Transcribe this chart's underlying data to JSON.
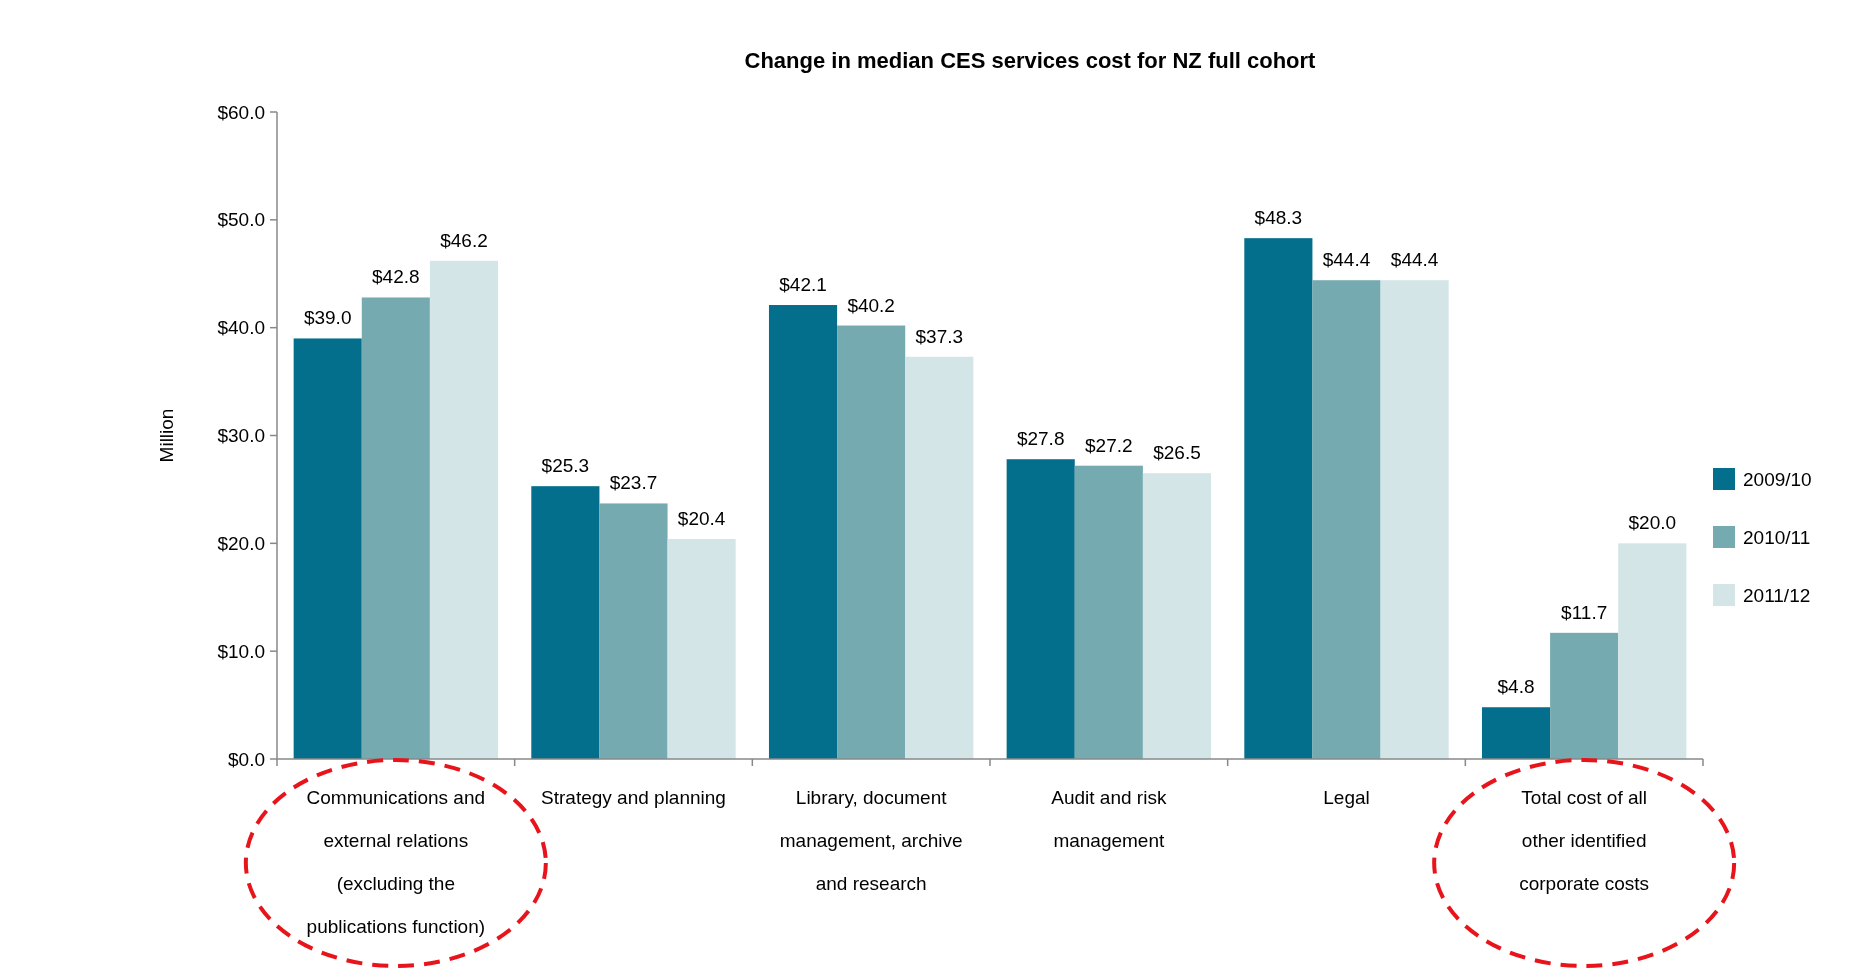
{
  "chart_data": {
    "type": "bar",
    "title": "Change in median CES services cost for NZ full cohort",
    "ylabel": "Million",
    "categories": [
      "Communications and external relations (excluding the publications function)",
      "Strategy and planning",
      "Library, document management, archive and research",
      "Audit and risk management",
      "Legal",
      "Total cost of all other identified corporate costs"
    ],
    "series": [
      {
        "name": "2009/10",
        "color": "#046f8c",
        "values": [
          39.0,
          25.3,
          42.1,
          27.8,
          48.3,
          4.8
        ],
        "value_labels": [
          "$39.0",
          "$25.3",
          "$42.1",
          "$27.8",
          "$48.3",
          "$4.8"
        ]
      },
      {
        "name": "2010/11",
        "color": "#75abb0",
        "values": [
          42.8,
          23.7,
          40.2,
          27.2,
          44.4,
          11.7
        ],
        "value_labels": [
          "$42.8",
          "$23.7",
          "$40.2",
          "$27.2",
          "$44.4",
          "$11.7"
        ]
      },
      {
        "name": "2011/12",
        "color": "#d4e5e8",
        "values": [
          46.2,
          20.4,
          37.3,
          26.5,
          44.4,
          20.0
        ],
        "value_labels": [
          "$46.2",
          "$20.4",
          "$37.3",
          "$26.5",
          "$44.4",
          "$20.0"
        ]
      }
    ],
    "ylim": [
      0,
      60
    ],
    "yticks": [
      {
        "value": 0,
        "label": "$0.0"
      },
      {
        "value": 10,
        "label": "$10.0"
      },
      {
        "value": 20,
        "label": "$20.0"
      },
      {
        "value": 30,
        "label": "$30.0"
      },
      {
        "value": 40,
        "label": "$40.0"
      },
      {
        "value": 50,
        "label": "$50.0"
      },
      {
        "value": 60,
        "label": "$60.0"
      }
    ],
    "grid": false,
    "legend": "right"
  }
}
